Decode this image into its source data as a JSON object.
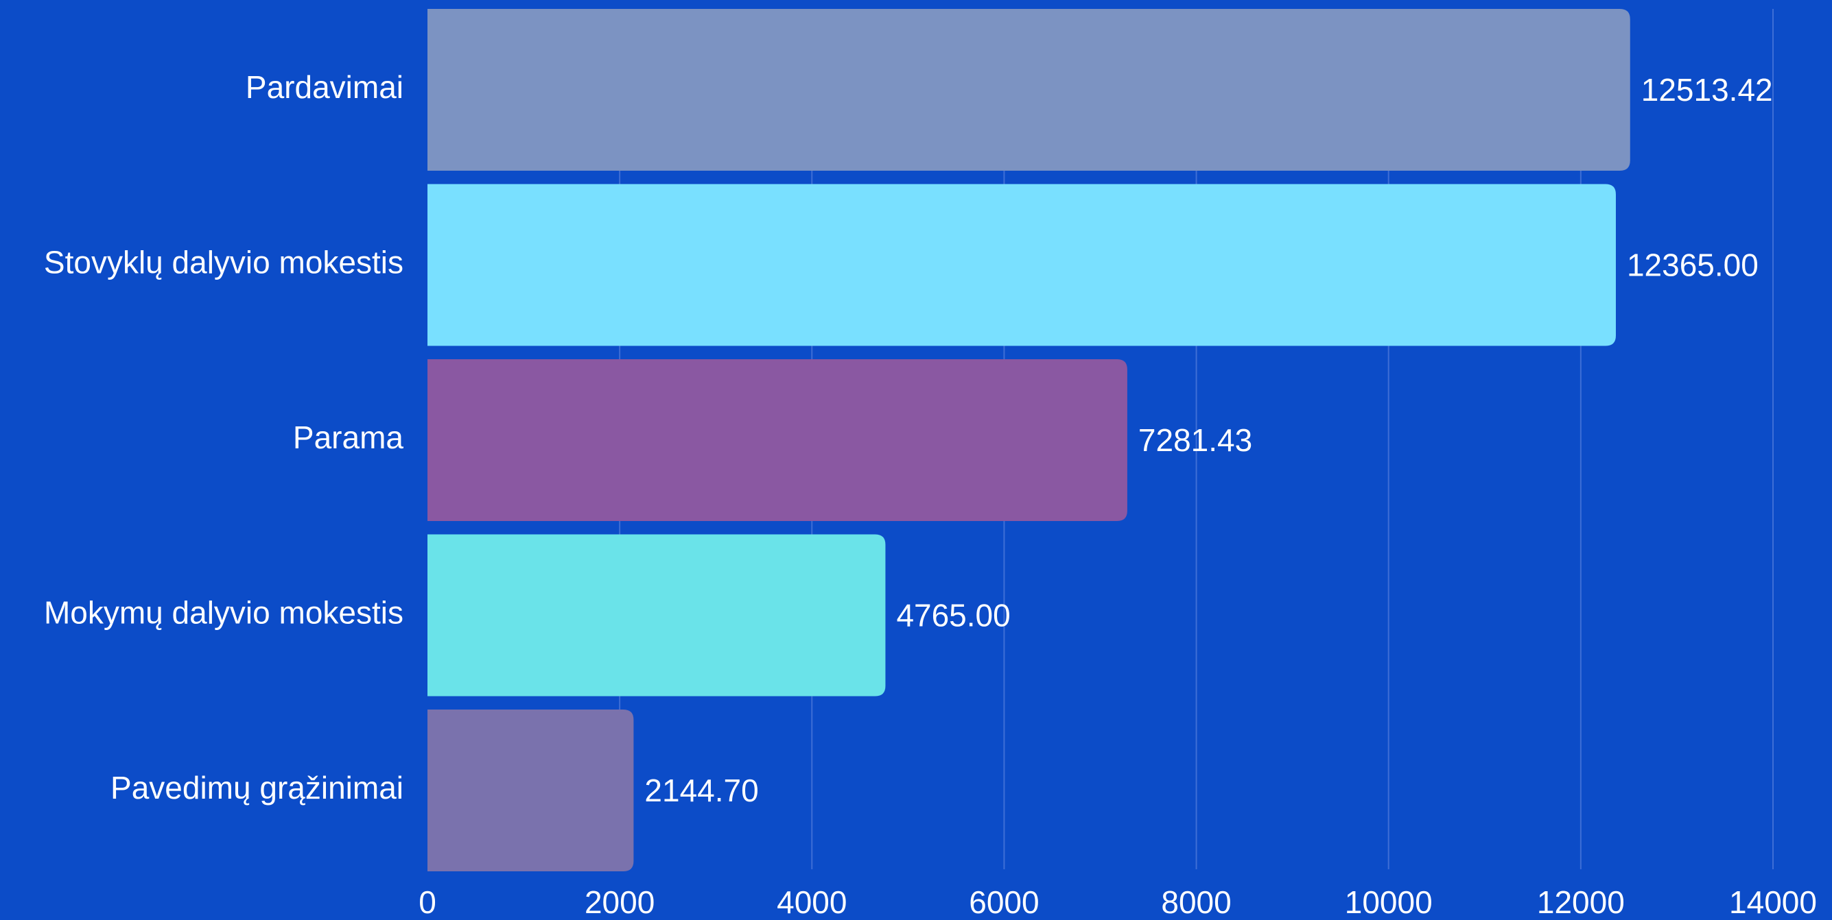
{
  "chart_data": {
    "type": "bar",
    "orientation": "horizontal",
    "title": "",
    "xlabel": "",
    "ylabel": "",
    "categories": [
      "Pardavimai",
      "Stovyklų dalyvio mokestis",
      "Parama",
      "Mokymų dalyvio mokestis",
      "Pavedimų grąžinimai"
    ],
    "values": [
      12513.42,
      12365.0,
      7281.43,
      4765.0,
      2144.7
    ],
    "value_labels": [
      "12513.42",
      "12365.00",
      "7281.43",
      "4765.00",
      "2144.70"
    ],
    "bar_colors": [
      "#7c93c2",
      "#79e0ff",
      "#8a58a2",
      "#6ae3e9",
      "#7a72ad"
    ],
    "xlim": [
      0,
      14000
    ],
    "x_ticks": [
      0,
      2000,
      4000,
      6000,
      8000,
      10000,
      12000,
      14000
    ],
    "x_tick_labels": [
      "0",
      "2000",
      "4000",
      "6000",
      "8000",
      "10000",
      "12000",
      "14000"
    ],
    "grid": true,
    "legend": "none",
    "colors": {
      "background": "#0c4cc8",
      "text": "#ffffff",
      "grid": "#3e6ed6"
    }
  }
}
